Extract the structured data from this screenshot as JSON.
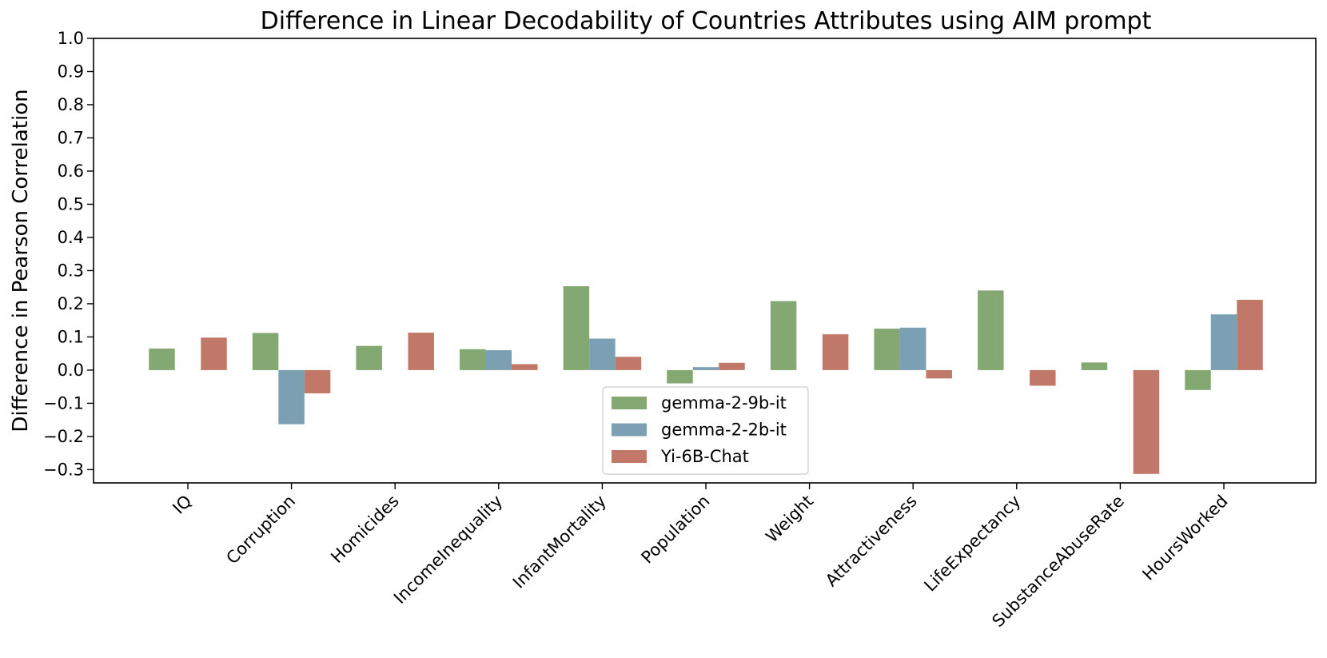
{
  "chart_data": {
    "type": "bar",
    "title": "Difference in Linear Decodability of Countries Attributes using AIM prompt",
    "xlabel": "",
    "ylabel": "Difference in Pearson Correlation",
    "ylim": [
      -0.34,
      1.0
    ],
    "yticks": [
      -0.3,
      -0.2,
      -0.1,
      0.0,
      0.1,
      0.2,
      0.3,
      0.4,
      0.5,
      0.6,
      0.7,
      0.8,
      0.9,
      1.0
    ],
    "ytick_labels": [
      "−0.3",
      "−0.2",
      "−0.1",
      "0.0",
      "0.1",
      "0.2",
      "0.3",
      "0.4",
      "0.5",
      "0.6",
      "0.7",
      "0.8",
      "0.9",
      "1.0"
    ],
    "categories": [
      "IQ",
      "Corruption",
      "Homicides",
      "IncomeInequality",
      "InfantMortality",
      "Population",
      "Weight",
      "Attractiveness",
      "LifeExpectancy",
      "SubstanceAbuseRate",
      "HoursWorked"
    ],
    "series": [
      {
        "name": "gemma-2-9b-it",
        "color": "#84a872",
        "values": [
          0.065,
          0.112,
          0.073,
          0.063,
          0.253,
          -0.04,
          0.208,
          0.125,
          0.24,
          0.023,
          -0.06
        ]
      },
      {
        "name": "gemma-2-2b-it",
        "color": "#7ca0b3",
        "values": [
          0.0,
          -0.163,
          0.0,
          0.06,
          0.095,
          0.009,
          0.0,
          0.128,
          0.0,
          0.0,
          0.168
        ]
      },
      {
        "name": "Yi-6B-Chat",
        "color": "#c27868",
        "values": [
          0.098,
          -0.07,
          0.113,
          0.018,
          0.04,
          0.022,
          0.108,
          -0.025,
          -0.047,
          -0.313,
          0.212
        ]
      }
    ],
    "legend_position": "lower center",
    "grid": false
  }
}
